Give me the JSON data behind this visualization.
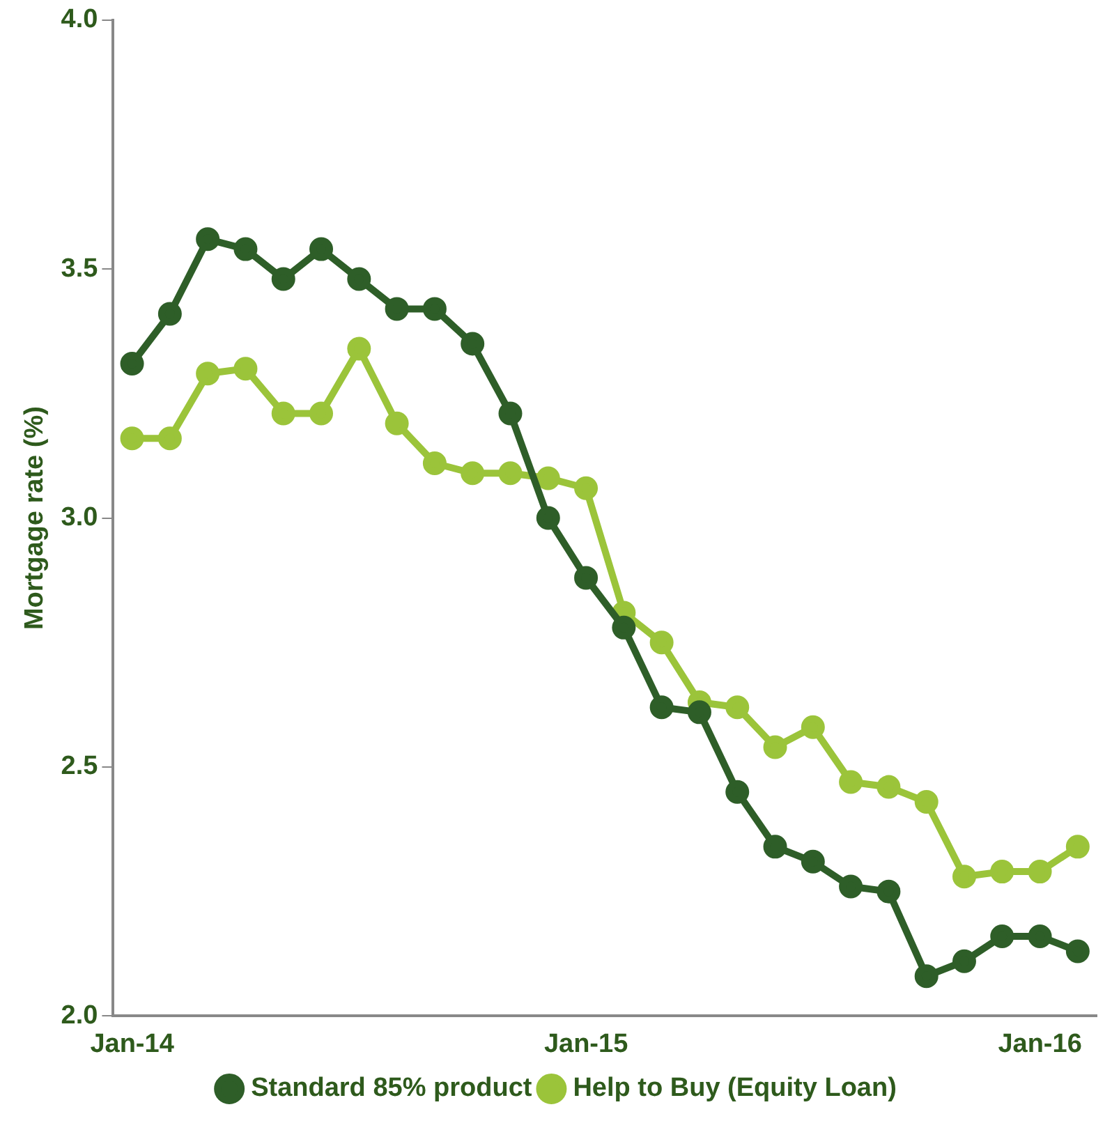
{
  "chart_data": {
    "type": "line",
    "ylabel": "Mortgage rate (%)",
    "categories": [
      "Jan-14",
      null,
      null,
      null,
      null,
      null,
      null,
      null,
      null,
      null,
      null,
      null,
      "Jan-15",
      null,
      null,
      null,
      null,
      null,
      null,
      null,
      null,
      null,
      null,
      null,
      "Jan-16",
      null
    ],
    "series": [
      {
        "name": "Standard 85% product",
        "color": "#2e5e28",
        "values": [
          3.31,
          3.41,
          3.56,
          3.54,
          3.48,
          3.54,
          3.48,
          3.42,
          3.42,
          3.35,
          3.21,
          3.0,
          2.88,
          2.78,
          2.62,
          2.61,
          2.45,
          2.34,
          2.31,
          2.26,
          2.25,
          2.08,
          2.11,
          2.16,
          2.16,
          2.13
        ]
      },
      {
        "name": "Help to Buy (Equity Loan)",
        "color": "#9bc43a",
        "values": [
          3.16,
          3.16,
          3.29,
          3.3,
          3.21,
          3.21,
          3.34,
          3.19,
          3.11,
          3.09,
          3.09,
          3.08,
          3.06,
          2.81,
          2.75,
          2.63,
          2.62,
          2.54,
          2.58,
          2.47,
          2.46,
          2.43,
          2.28,
          2.29,
          2.29,
          2.34
        ]
      }
    ],
    "ylim": [
      2,
      4
    ],
    "yticks": [
      {
        "value": 2,
        "label": "2.0"
      },
      {
        "value": 2.5,
        "label": "2.5"
      },
      {
        "value": 3,
        "label": "3.0"
      },
      {
        "value": 3.5,
        "label": "3.5"
      },
      {
        "value": 4,
        "label": "4.0"
      }
    ],
    "grid": false,
    "legend": "bottom",
    "marker": "circle",
    "line_style": "solid"
  }
}
